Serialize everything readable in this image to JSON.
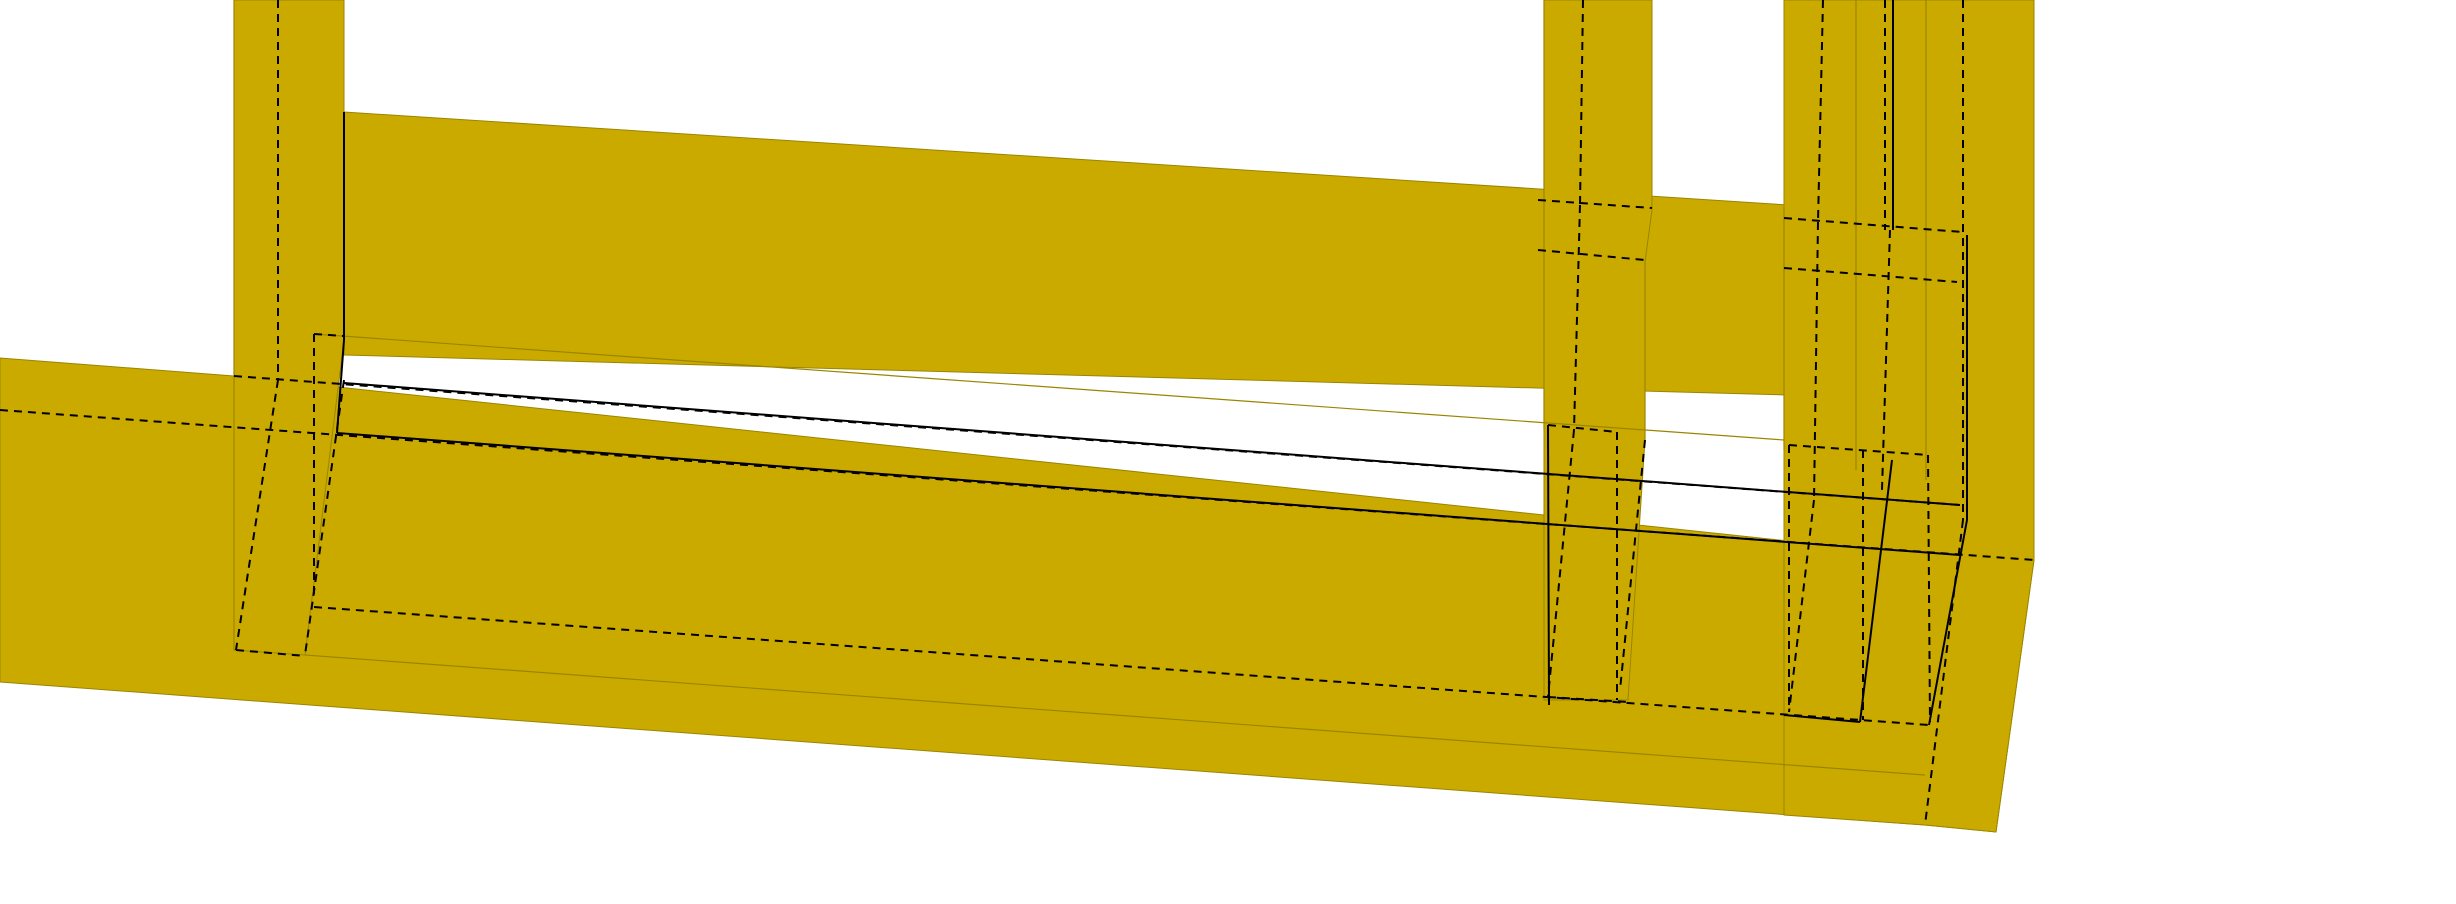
{
  "viewport": {
    "background": "#ffffff"
  },
  "model": {
    "fill_color": "#cbaa00",
    "edge_color": "#9a8500",
    "hidden_line_color": "#000000",
    "visible_line_color": "#000000"
  }
}
